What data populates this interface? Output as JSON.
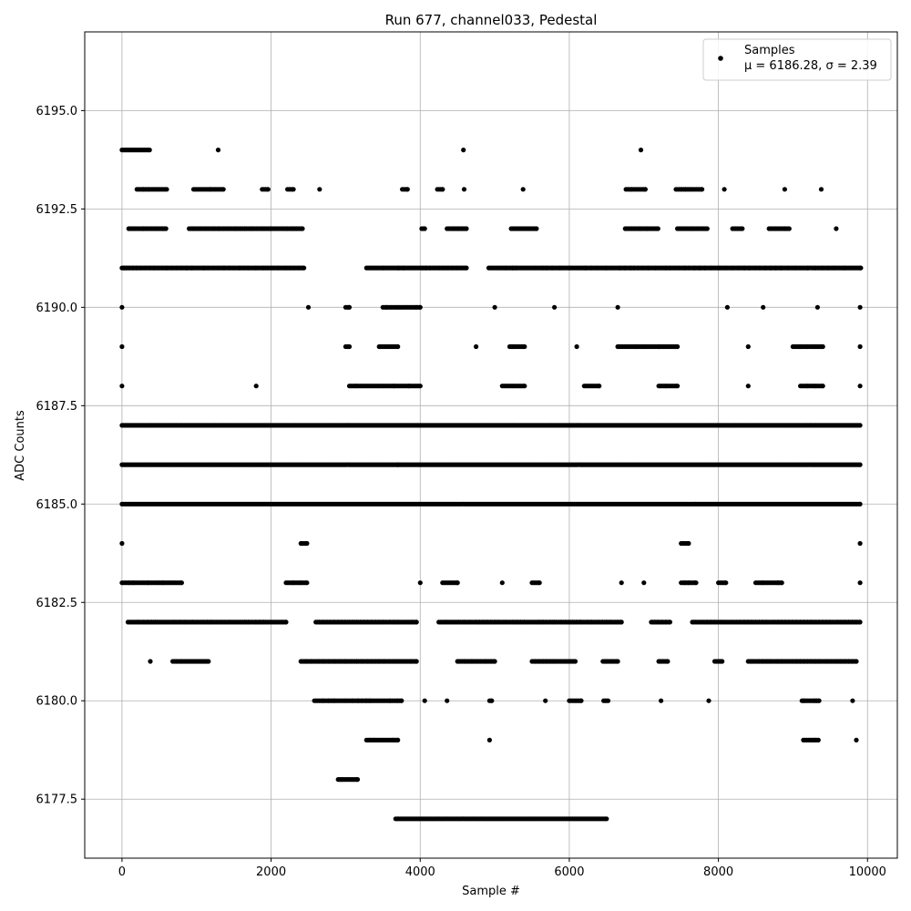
{
  "chart_data": {
    "type": "scatter",
    "title": "Run 677, channel033, Pedestal",
    "xlabel": "Sample #",
    "ylabel": "ADC Counts",
    "xlim": [
      -500,
      10400
    ],
    "ylim": [
      6176.0,
      6197.0
    ],
    "xticks": [
      0,
      2000,
      4000,
      6000,
      8000,
      10000
    ],
    "xtick_labels": [
      "0",
      "2000",
      "4000",
      "6000",
      "8000",
      "10000"
    ],
    "yticks": [
      6177.5,
      6180.0,
      6182.5,
      6185.0,
      6187.5,
      6190.0,
      6192.5,
      6195.0
    ],
    "ytick_labels": [
      "6177.5",
      "6180.0",
      "6182.5",
      "6185.0",
      "6187.5",
      "6190.0",
      "6192.5",
      "6195.0"
    ],
    "grid": true,
    "legend_position": "top-right",
    "marker_color": "#000000",
    "series": [
      {
        "name": "Samples",
        "stats_label": "μ = 6186.28, σ = 2.39",
        "x_start": 0,
        "x_end": 9900,
        "levels": [
          {
            "y": 6194,
            "x": [
              0,
              130,
              370,
              1290,
              4580,
              6960
            ]
          },
          {
            "y": 6193,
            "x": [
              200,
              290,
              330,
              360,
              490,
              600,
              960,
              1190,
              1360,
              1880,
              1960,
              2220,
              2300,
              2650,
              3760,
              3830,
              4230,
              4300,
              4590,
              5380,
              6760,
              6840,
              7020,
              7430,
              7510,
              7560,
              7620,
              7660,
              7780,
              8080,
              8890,
              9380
            ]
          },
          {
            "y": 6192,
            "x": [
              90,
              130,
              290,
              330,
              480,
              550,
              590,
              900,
              960,
              1130,
              1230,
              1300,
              1430,
              1520,
              1600,
              1650,
              1740,
              1880,
              1920,
              1990,
              2220,
              2290,
              2340,
              2420,
              4020,
              4060,
              4360,
              4460,
              4510,
              4560,
              4620,
              5220,
              5350,
              5560,
              6750,
              6880,
              6950,
              7040,
              7190,
              7450,
              7560,
              7640,
              7680,
              7810,
              7850,
              8190,
              8320,
              8680,
              8890,
              8950,
              9580
            ]
          },
          {
            "y": 6191,
            "x": [
              0,
              30,
              60,
              100,
              150,
              200,
              260,
              320,
              380,
              430,
              490,
              550,
              600,
              680,
              740,
              800,
              870,
              940,
              1100,
              1160,
              1240,
              1300,
              1370,
              1450,
              1510,
              1580,
              1640,
              1700,
              1800,
              1900,
              1960,
              2020,
              2100,
              2200,
              2260,
              2320,
              2380,
              2440,
              3280,
              3510,
              3710,
              3780,
              4030,
              4080,
              4140,
              4200,
              4260,
              4320,
              4380,
              4440,
              4500,
              4560,
              4620,
              4920,
              5150,
              5240,
              5290,
              5420,
              5550,
              5650,
              5700,
              5780,
              5880,
              6000,
              6130,
              6220,
              6300,
              6380,
              6500,
              6680,
              6750,
              6820,
              6870,
              6930,
              6990,
              7060,
              7160,
              7300,
              7360,
              7420,
              7480,
              7550,
              7610,
              7680,
              7750,
              7820,
              7900,
              8020,
              8100,
              8200,
              8280,
              8350,
              8420,
              8500,
              8560,
              8630,
              8700,
              8770,
              8840,
              8940,
              9040,
              9200,
              9300,
              9400,
              9480,
              9560,
              9700,
              9910
            ]
          },
          {
            "y": 6190,
            "x": [
              0,
              2500,
              3000,
              3050,
              3500,
              3550,
              3700,
              3950,
              4000,
              5000,
              5800,
              6650,
              8120,
              8600,
              9330,
              9900
            ]
          },
          {
            "y": 6189,
            "x": [
              0,
              3000,
              3050,
              3450,
              3700,
              4750,
              5200,
              5250,
              5400,
              6100,
              6650,
              6900,
              7000,
              7200,
              7450,
              8400,
              9000,
              9100,
              9200,
              9300,
              9400,
              9900
            ]
          },
          {
            "y": 6188,
            "x": [
              0,
              1800,
              3050,
              3150,
              3300,
              3450,
              3650,
              3850,
              4000,
              5100,
              5250,
              5400,
              6200,
              6400,
              7200,
              7300,
              7450,
              8400,
              9100,
              9200,
              9300,
              9400,
              9900
            ]
          },
          {
            "y": 6187,
            "x": [
              0,
              9900
            ]
          },
          {
            "y": 6186,
            "x": [
              0,
              3700,
              3720,
              9900
            ]
          },
          {
            "y": 6185,
            "x": [
              0,
              2000,
              2150,
              9900
            ]
          },
          {
            "y": 6184,
            "x": [
              0,
              2400,
              2480,
              7500,
              7600,
              9900
            ]
          },
          {
            "y": 6183,
            "x": [
              0,
              100,
              150,
              300,
              350,
              500,
              550,
              700,
              800,
              2200,
              2300,
              2400,
              2480,
              4000,
              4300,
              4500,
              5100,
              5500,
              5600,
              6700,
              7000,
              7500,
              7550,
              7600,
              7700,
              8000,
              8100,
              8500,
              8600,
              8800,
              8850,
              9900
            ]
          },
          {
            "y": 6182,
            "x": [
              80,
              220,
              300,
              350,
              400,
              450,
              490,
              700,
              780,
              850,
              950,
              1100,
              1150,
              1200,
              1350,
              1450,
              1600,
              1650,
              1700,
              1800,
              1850,
              1900,
              2050,
              2150,
              2200,
              2600,
              2650,
              2700,
              2750,
              2800,
              2850,
              2900,
              2950,
              3000,
              3050,
              3100,
              3150,
              3200,
              3250,
              3300,
              3350,
              3400,
              3450,
              3500,
              3600,
              3650,
              3700,
              3850,
              3900,
              3950,
              4250,
              4350,
              4520,
              4600,
              4680,
              4750,
              4800,
              4850,
              4900,
              4950,
              5000,
              5050,
              5150,
              5250,
              5300,
              5350,
              5400,
              5600,
              5650,
              5750,
              5800,
              5900,
              5950,
              6000,
              6050,
              6100,
              6150,
              6250,
              6300,
              6400,
              6450,
              6500,
              6550,
              6650,
              6700,
              7100,
              7150,
              7200,
              7250,
              7300,
              7350,
              7650,
              7800,
              7850,
              7900,
              7950,
              8050,
              8200,
              8300,
              8350,
              8400,
              8450,
              8500,
              8550,
              8600,
              8650,
              8750,
              8800,
              8850,
              8900,
              8950,
              9000,
              9050,
              9100,
              9150,
              9200,
              9250,
              9300,
              9350,
              9400,
              9450,
              9500,
              9600,
              9650,
              9700,
              9750,
              9800,
              9850,
              9900
            ]
          },
          {
            "y": 6181,
            "x": [
              380,
              680,
              740,
              800,
              1020,
              1080,
              1120,
              1160,
              2400,
              2470,
              2550,
              2650,
              2700,
              2780,
              2850,
              2930,
              3000,
              3080,
              3150,
              3230,
              3300,
              3350,
              3400,
              3450,
              3520,
              3600,
              3680,
              3720,
              3880,
              3950,
              4500,
              4600,
              4700,
              4880,
              4950,
              5000,
              5500,
              5550,
              5600,
              5650,
              5700,
              5750,
              5800,
              5950,
              6080,
              6450,
              6500,
              6650,
              7200,
              7320,
              7950,
              8050,
              8400,
              8450,
              8550,
              8600,
              8650,
              8700,
              8800,
              8850,
              9000,
              9050,
              9100,
              9150,
              9200,
              9250,
              9300,
              9350,
              9450,
              9600,
              9650,
              9700,
              9750,
              9800,
              9850
            ]
          },
          {
            "y": 6180,
            "x": [
              2580,
              2700,
              2780,
              2820,
              2850,
              3000,
              3100,
              3170,
              3230,
              3280,
              3330,
              3550,
              3600,
              3700,
              3750,
              4060,
              4360,
              4930,
              4960,
              5680,
              6000,
              6020,
              6160,
              6460,
              6500,
              6520,
              7230,
              7870,
              9120,
              9150,
              9290,
              9320,
              9350,
              9800
            ]
          },
          {
            "y": 6179,
            "x": [
              3280,
              3330,
              3380,
              3600,
              3650,
              3700,
              4930,
              9140,
              9300,
              9340,
              9850
            ]
          },
          {
            "y": 6178,
            "x": [
              2900,
              2950,
              3160
            ]
          },
          {
            "y": 6177,
            "x": [
              3670,
              3710,
              6500
            ]
          }
        ]
      }
    ]
  }
}
